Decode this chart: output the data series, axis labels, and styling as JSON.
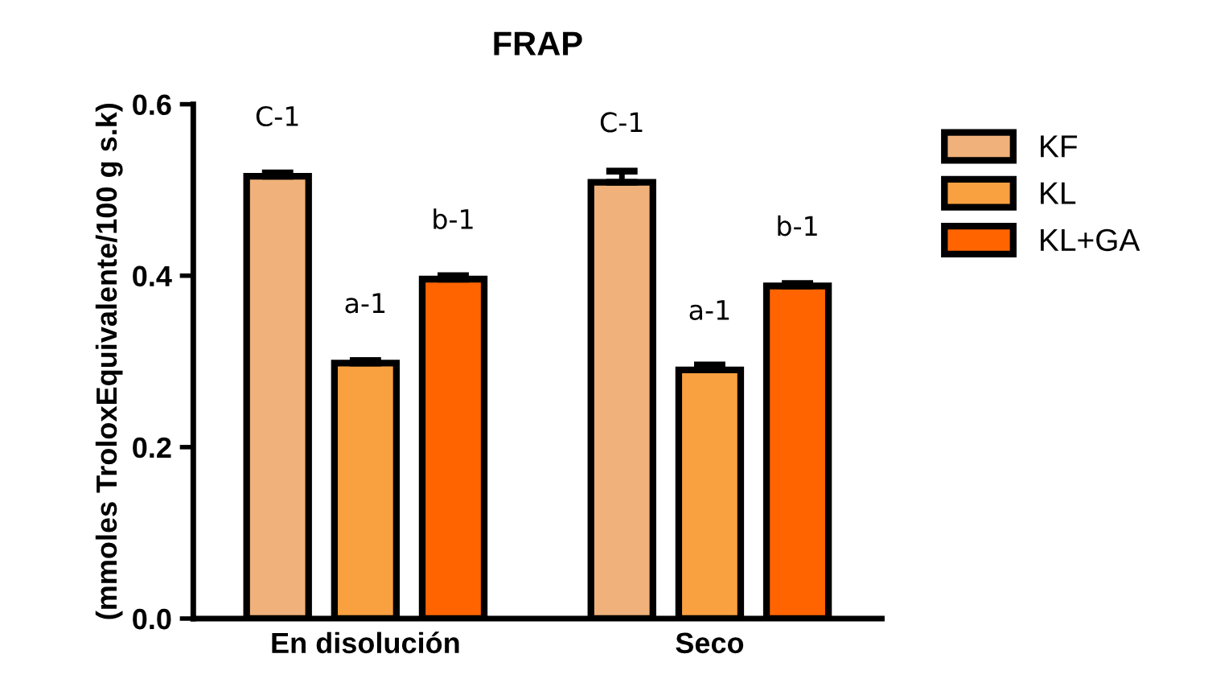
{
  "chart_data": {
    "type": "bar",
    "title": "FRAP",
    "ylabel": "(mmoles TroloxEquivalente/100 g s.k)",
    "categories": [
      "En disolución",
      "Seco"
    ],
    "series": [
      {
        "name": "KF",
        "color": "#f0b27a",
        "values": [
          0.516,
          0.509
        ],
        "errors": [
          0.004,
          0.013
        ],
        "value_labels": [
          "C-1",
          "C-1"
        ]
      },
      {
        "name": "KL",
        "color": "#f9a040",
        "values": [
          0.298,
          0.29
        ],
        "errors": [
          0.003,
          0.006
        ],
        "value_labels": [
          "a-1",
          "a-1"
        ]
      },
      {
        "name": "KL+GA",
        "color": "#ff6400",
        "values": [
          0.396,
          0.388
        ],
        "errors": [
          0.004,
          0.003
        ],
        "value_labels": [
          "b-1",
          "b-1"
        ]
      }
    ],
    "ylim": [
      0,
      0.6
    ],
    "yticks": [
      {
        "value": 0,
        "label": "0.0"
      },
      {
        "value": 0.2,
        "label": "0.2"
      },
      {
        "value": 0.4,
        "label": "0.4"
      },
      {
        "value": 0.6,
        "label": "0.6"
      }
    ],
    "grid": false,
    "legend": "right"
  }
}
